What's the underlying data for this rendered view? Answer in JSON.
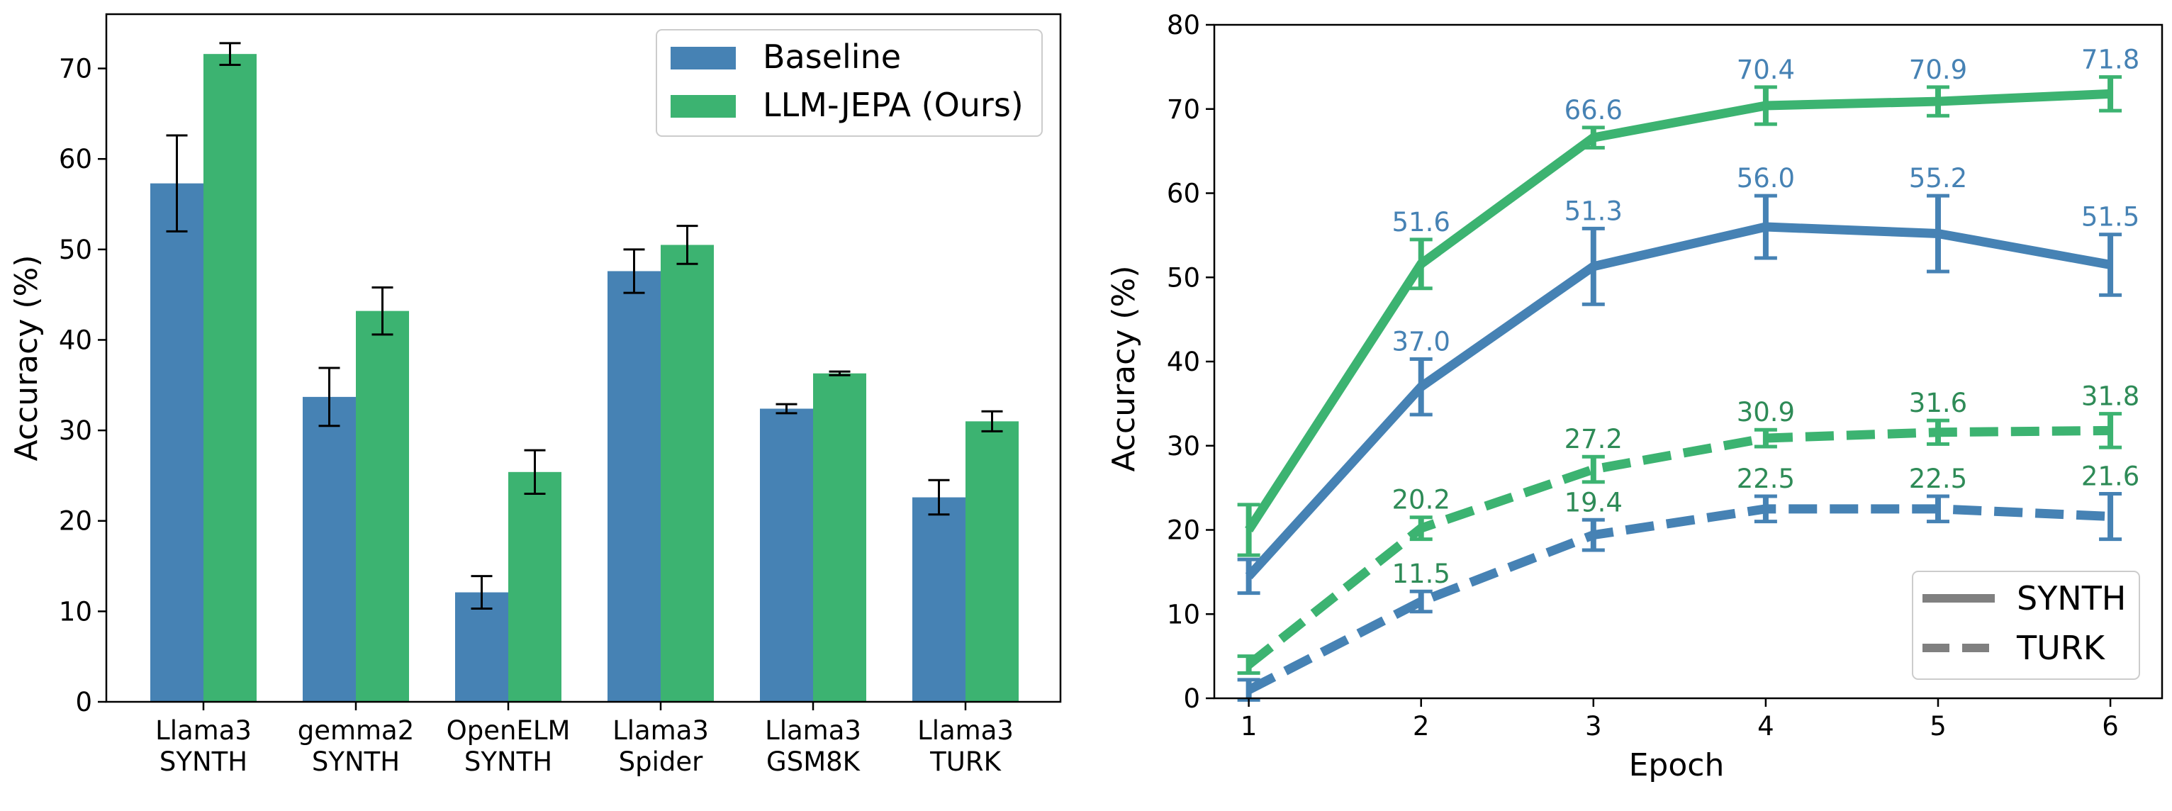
{
  "colors": {
    "baseline": "#4682b4",
    "ours": "#3cb371",
    "turk_label": "#2e8b57",
    "error_bar": "#000000",
    "legend_style": "#808080"
  },
  "chart_data": [
    {
      "type": "bar",
      "title": "",
      "xlabel": "",
      "ylabel": "Accuracy (%)",
      "ylim": [
        0,
        76
      ],
      "yticks": [
        0,
        10,
        20,
        30,
        40,
        50,
        60,
        70
      ],
      "categories": [
        [
          "Llama3",
          "SYNTH"
        ],
        [
          "gemma2",
          "SYNTH"
        ],
        [
          "OpenELM",
          "SYNTH"
        ],
        [
          "Llama3",
          "Spider"
        ],
        [
          "Llama3",
          "GSM8K"
        ],
        [
          "Llama3",
          "TURK"
        ]
      ],
      "series": [
        {
          "name": "Baseline",
          "color_key": "baseline",
          "values": [
            57.3,
            33.7,
            12.1,
            47.6,
            32.4,
            22.6
          ],
          "errors": [
            5.3,
            3.2,
            1.8,
            2.4,
            0.5,
            1.9
          ]
        },
        {
          "name": "LLM-JEPA (Ours)",
          "color_key": "ours",
          "values": [
            71.6,
            43.2,
            25.4,
            50.5,
            36.3,
            31.0
          ],
          "errors": [
            1.2,
            2.6,
            2.4,
            2.1,
            0.2,
            1.1
          ]
        }
      ],
      "legend": {
        "position": "top-right",
        "entries": [
          "Baseline",
          "LLM-JEPA (Ours)"
        ]
      }
    },
    {
      "type": "line",
      "title": "",
      "xlabel": "Epoch",
      "ylabel": "Accuracy (%)",
      "x": [
        1,
        2,
        3,
        4,
        5,
        6
      ],
      "xlim": [
        0.8,
        6.3
      ],
      "ylim": [
        0,
        80
      ],
      "yticks": [
        0,
        10,
        20,
        30,
        40,
        50,
        60,
        70,
        80
      ],
      "series": [
        {
          "name": "LLM-JEPA SYNTH",
          "color_key": "ours",
          "style": "solid",
          "values": [
            20.0,
            51.6,
            66.6,
            70.4,
            70.9,
            71.8
          ],
          "errors": [
            3.0,
            2.9,
            1.2,
            2.2,
            1.7,
            2.0
          ],
          "labels": [
            "",
            "51.6",
            "66.6",
            "70.4",
            "70.9",
            "71.8"
          ],
          "label_color_key": "baseline"
        },
        {
          "name": "Baseline SYNTH",
          "color_key": "baseline",
          "style": "solid",
          "values": [
            14.5,
            37.0,
            51.3,
            56.0,
            55.2,
            51.5
          ],
          "errors": [
            2.0,
            3.3,
            4.5,
            3.7,
            4.5,
            3.6
          ],
          "labels": [
            "",
            "37.0",
            "51.3",
            "56.0",
            "55.2",
            "51.5"
          ],
          "label_color_key": "baseline"
        },
        {
          "name": "LLM-JEPA TURK",
          "color_key": "ours",
          "style": "dashed",
          "values": [
            4.0,
            20.2,
            27.2,
            30.9,
            31.6,
            31.8
          ],
          "errors": [
            1.0,
            1.3,
            1.5,
            1.0,
            1.4,
            2.0
          ],
          "labels": [
            "",
            "20.2",
            "27.2",
            "30.9",
            "31.6",
            "31.8"
          ],
          "label_color_key": "turk_label"
        },
        {
          "name": "Baseline TURK",
          "color_key": "baseline",
          "style": "dashed",
          "values": [
            1.0,
            11.5,
            19.4,
            22.5,
            22.5,
            21.6
          ],
          "errors": [
            1.2,
            1.2,
            1.8,
            1.5,
            1.5,
            2.7
          ],
          "labels": [
            "",
            "11.5",
            "19.4",
            "22.5",
            "22.5",
            "21.6"
          ],
          "label_color_key": "turk_label"
        }
      ],
      "legend": {
        "position": "bottom-right",
        "entries": [
          {
            "label": "SYNTH",
            "style": "solid"
          },
          {
            "label": "TURK",
            "style": "dashed"
          }
        ]
      }
    }
  ]
}
